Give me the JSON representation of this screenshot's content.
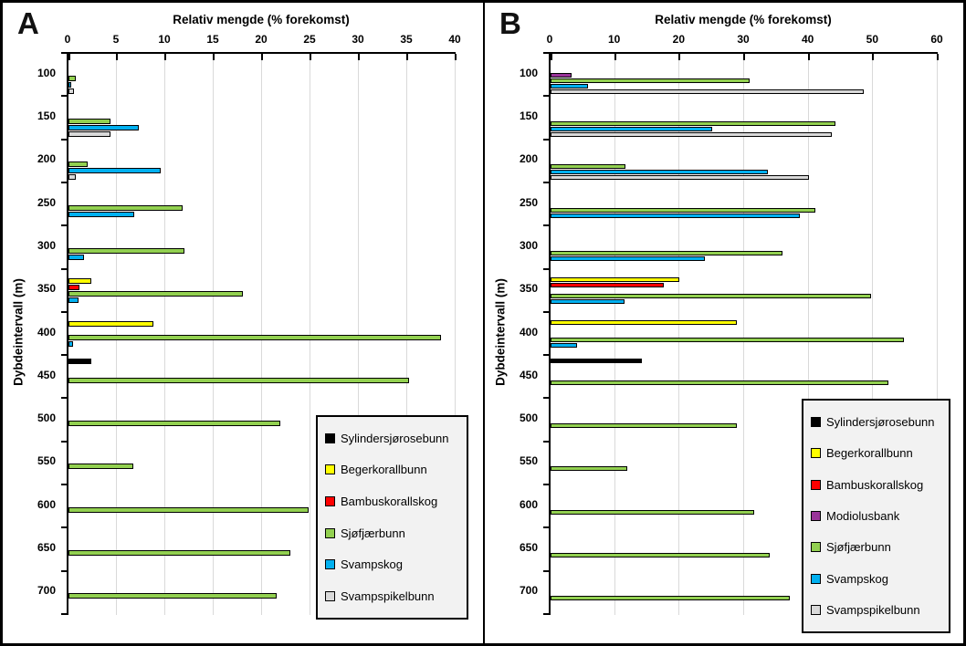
{
  "style": {
    "gridline_color": "#d9d9d9",
    "legend_bg": "#f2f2f2",
    "axis_color": "#000000"
  },
  "chart_data": [
    {
      "type": "bar",
      "orientation": "horizontal",
      "panel_label": "A",
      "title": "Relativ mengde (% forekomst)",
      "ylabel": "Dybdeintervall (m)",
      "categories": [
        100,
        150,
        200,
        250,
        300,
        350,
        400,
        450,
        500,
        550,
        600,
        650,
        700
      ],
      "xlim": [
        0,
        40
      ],
      "tick_step": 5,
      "grid_step": 5,
      "legend_position": "bottom-right",
      "series": [
        {
          "name": "Sylindersjørosebunn",
          "color": "#000000",
          "values": [
            null,
            null,
            null,
            null,
            null,
            null,
            null,
            2.4,
            null,
            null,
            null,
            null,
            null
          ]
        },
        {
          "name": "Begerkorallbunn",
          "color": "#ffff00",
          "values": [
            null,
            null,
            null,
            null,
            null,
            2.4,
            8.8,
            null,
            null,
            null,
            null,
            null,
            null
          ]
        },
        {
          "name": "Bambuskorallskog",
          "color": "#ff0000",
          "values": [
            null,
            null,
            null,
            null,
            null,
            1.1,
            null,
            null,
            null,
            null,
            null,
            null,
            null
          ]
        },
        {
          "name": "Sjøfjærbunn",
          "color": "#92d050",
          "values": [
            0.8,
            4.3,
            2.0,
            11.8,
            12.0,
            18.0,
            38.5,
            35.2,
            21.9,
            6.7,
            24.8,
            22.9,
            21.5
          ]
        },
        {
          "name": "Svampskog",
          "color": "#00b0f0",
          "values": [
            0.3,
            7.3,
            9.5,
            6.8,
            1.6,
            1.0,
            0.5,
            null,
            null,
            null,
            null,
            null,
            null
          ]
        },
        {
          "name": "Svampspikelbunn",
          "color": "#d9d9d9",
          "values": [
            0.6,
            4.3,
            0.8,
            null,
            null,
            null,
            null,
            null,
            null,
            null,
            null,
            null,
            null
          ]
        }
      ]
    },
    {
      "type": "bar",
      "orientation": "horizontal",
      "panel_label": "B",
      "title": "Relativ mengde (% forekomst)",
      "ylabel": "Dybdeintervall (m)",
      "categories": [
        100,
        150,
        200,
        250,
        300,
        350,
        400,
        450,
        500,
        550,
        600,
        650,
        700
      ],
      "xlim": [
        0,
        60
      ],
      "tick_step": 10,
      "grid_step": 10,
      "legend_position": "bottom-right",
      "series": [
        {
          "name": "Sylindersjørosebunn",
          "color": "#000000",
          "values": [
            null,
            null,
            null,
            null,
            null,
            null,
            null,
            14.2,
            null,
            null,
            null,
            null,
            null
          ]
        },
        {
          "name": "Begerkorallbunn",
          "color": "#ffff00",
          "values": [
            null,
            null,
            null,
            null,
            null,
            19.9,
            28.8,
            null,
            null,
            null,
            null,
            null,
            null
          ]
        },
        {
          "name": "Bambuskorallskog",
          "color": "#ff0000",
          "values": [
            null,
            null,
            null,
            null,
            null,
            17.6,
            null,
            null,
            null,
            null,
            null,
            null,
            null
          ]
        },
        {
          "name": "Modiolusbank",
          "color": "#993399",
          "values": [
            3.2,
            null,
            null,
            null,
            null,
            null,
            null,
            null,
            null,
            null,
            null,
            null,
            null
          ]
        },
        {
          "name": "Sjøfjærbunn",
          "color": "#92d050",
          "values": [
            30.8,
            44.2,
            11.6,
            41.1,
            36.0,
            49.6,
            54.7,
            52.4,
            28.9,
            11.9,
            31.6,
            33.9,
            37.1
          ]
        },
        {
          "name": "Svampskog",
          "color": "#00b0f0",
          "values": [
            5.8,
            25.0,
            33.7,
            38.6,
            23.9,
            11.5,
            4.1,
            null,
            null,
            null,
            null,
            null,
            null
          ]
        },
        {
          "name": "Svampspikelbunn",
          "color": "#d9d9d9",
          "values": [
            48.5,
            43.6,
            40.1,
            null,
            null,
            null,
            null,
            null,
            null,
            null,
            null,
            null,
            null
          ]
        }
      ]
    }
  ]
}
